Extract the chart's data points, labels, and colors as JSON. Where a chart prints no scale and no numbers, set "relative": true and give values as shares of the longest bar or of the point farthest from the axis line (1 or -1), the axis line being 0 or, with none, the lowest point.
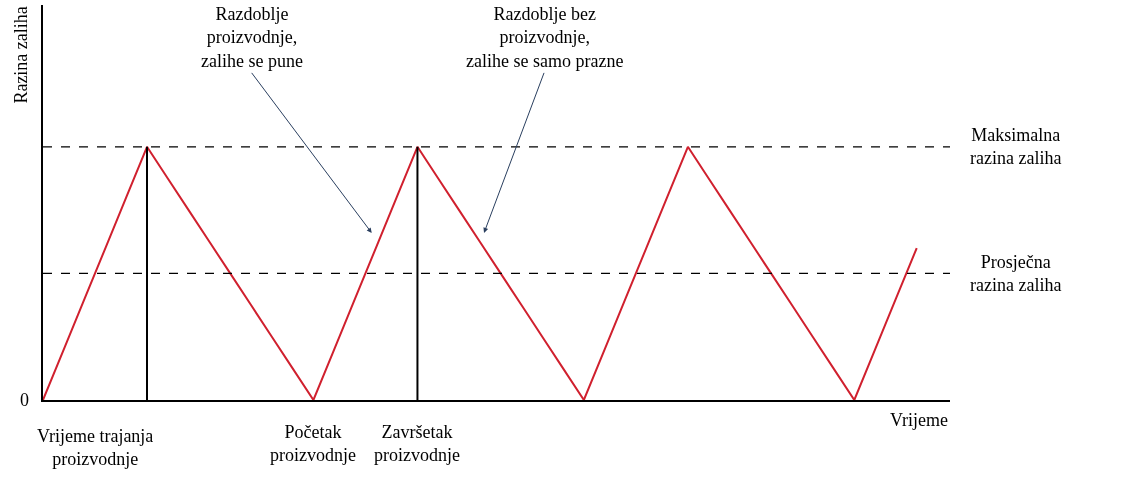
{
  "chart_data": {
    "type": "line",
    "relative": true,
    "ylabel": "Razina zaliha",
    "xlabel": "Vrijeme",
    "categories": [
      null,
      null,
      null,
      null,
      null,
      null,
      null,
      null,
      null,
      null,
      null,
      null,
      null,
      null,
      null,
      null,
      null,
      null,
      null,
      null,
      null,
      null,
      null,
      null,
      null,
      null,
      null,
      null,
      null,
      null,
      null,
      null,
      null,
      null,
      null,
      null,
      null,
      null,
      null,
      null,
      null,
      null,
      null
    ],
    "series": [
      {
        "color": "#d0202e",
        "values": [
          0,
          0.2,
          0.4,
          0.6,
          0.8,
          1,
          0.875,
          0.75,
          0.625,
          0.5,
          0.375,
          0.25,
          0.125,
          0,
          0.2,
          0.4,
          0.6,
          0.8,
          1,
          0.875,
          0.75,
          0.625,
          0.5,
          0.375,
          0.25,
          0.125,
          0,
          0.2,
          0.4,
          0.6,
          0.8,
          1,
          0.875,
          0.75,
          0.625,
          0.5,
          0.375,
          0.25,
          0.125,
          0,
          0.2,
          0.4,
          0.6
        ]
      }
    ],
    "ref_lines": [
      {
        "axis": "y",
        "value": 1,
        "label": "Maksimalna\nrazina zaliha",
        "color": "#000000",
        "line_style": "dashed"
      },
      {
        "axis": "y",
        "value": 0.5,
        "label": "Prosječna\nrazina zaliha",
        "color": "#000000",
        "line_style": "dashed"
      }
    ],
    "annotations": [
      "Razdoblje\nproizvodnje,\nzalihe se pune",
      "Razdoblje bez\nproizvodnje,\nzalihe se samo prazne",
      "Početak\nproizvodnje",
      "Završetak\nproizvodnje",
      "Vrijeme trajanja\nproizvodnje",
      "0"
    ],
    "line_style": "solid"
  }
}
